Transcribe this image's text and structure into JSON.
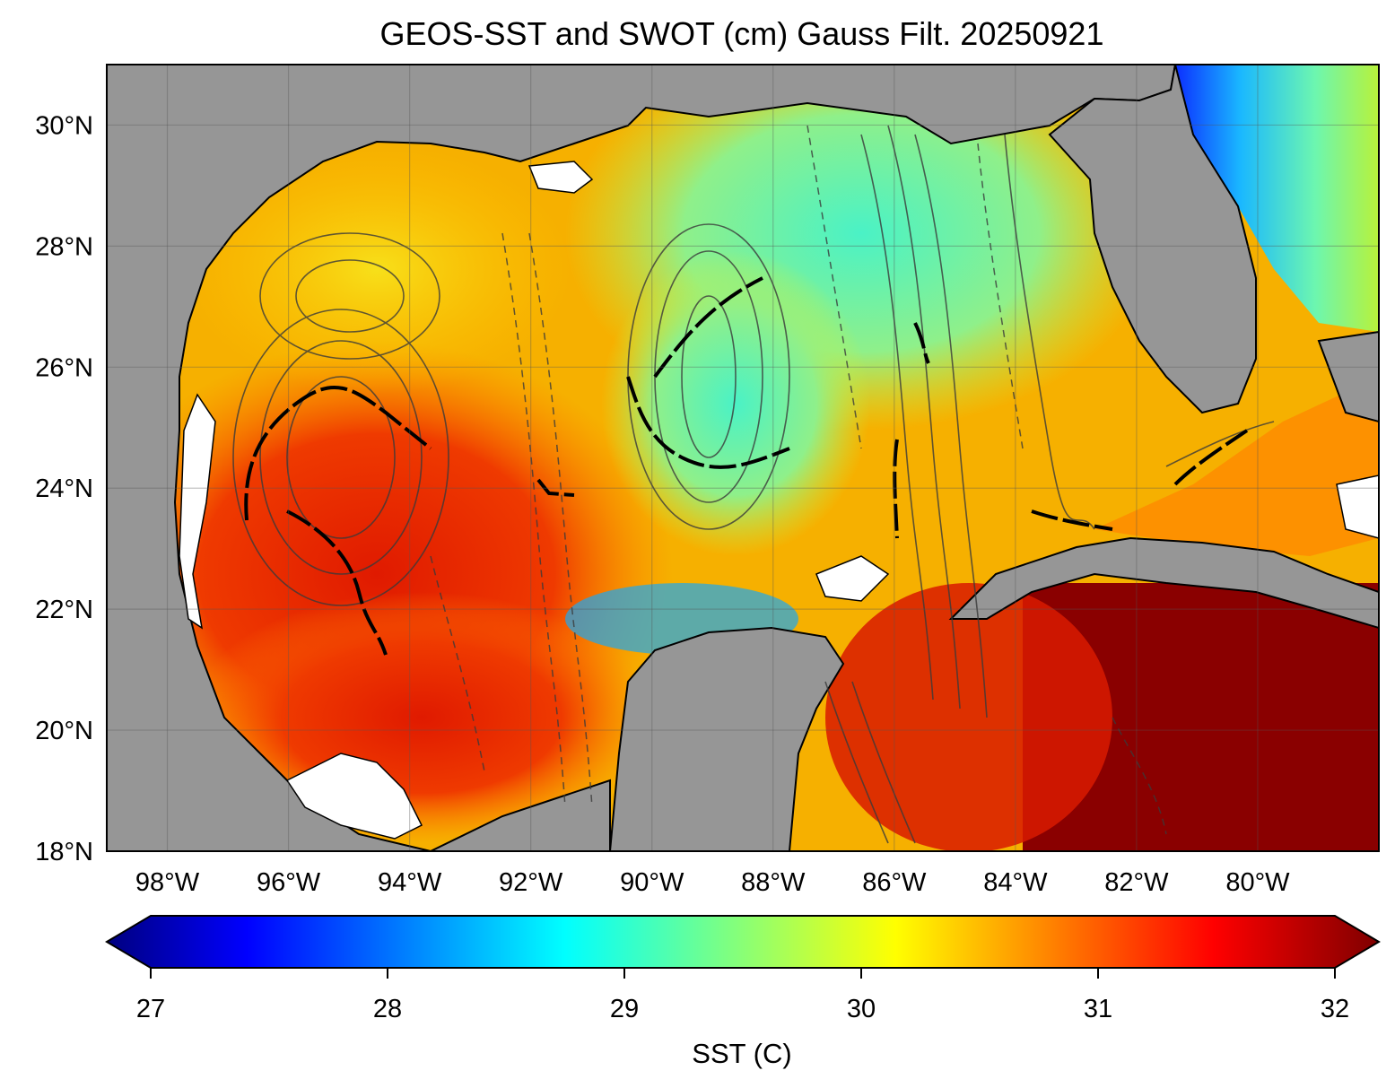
{
  "title": "GEOS-SST  and SWOT (cm) Gauss Filt. 20250921",
  "map": {
    "lat_ticks": [
      "30°N",
      "28°N",
      "26°N",
      "24°N",
      "22°N",
      "20°N",
      "18°N"
    ],
    "lon_ticks": [
      "98°W",
      "96°W",
      "94°W",
      "92°W",
      "90°W",
      "88°W",
      "86°W",
      "84°W",
      "82°W",
      "80°W"
    ],
    "lat_values": [
      30,
      28,
      26,
      24,
      22,
      20,
      18
    ],
    "lon_values": [
      -98,
      -96,
      -94,
      -92,
      -90,
      -88,
      -86,
      -84,
      -82,
      -80
    ],
    "extent": {
      "lon_min": -99,
      "lon_max": -78,
      "lat_min": 18,
      "lat_max": 31
    },
    "land_color": "#969696",
    "grid": true
  },
  "colorbar": {
    "label": "SST (C)",
    "ticks": [
      "27",
      "28",
      "29",
      "30",
      "31",
      "32"
    ],
    "vmin": 27,
    "vmax": 32,
    "colormap": "jet",
    "extend": "both"
  }
}
